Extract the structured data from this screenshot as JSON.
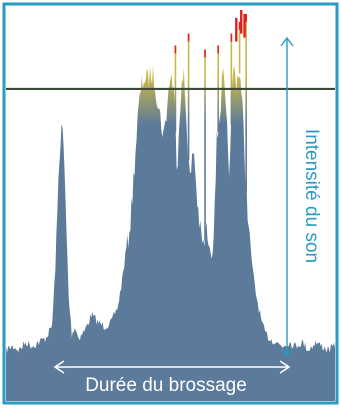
{
  "chart_data": {
    "type": "area",
    "title": "",
    "xlabel": "Durée du brossage",
    "ylabel": "Intensité du son",
    "xlim": [
      0,
      100
    ],
    "ylim": [
      0,
      100
    ],
    "threshold": 79,
    "colors": {
      "frame": "#2a9bc2",
      "fill": "#5c7a9a",
      "threshold_fill": "#c8b84a",
      "peak": "#e02020",
      "threshold_line": "#3d4a3a",
      "arrow": "#2a9bc2",
      "label_text_v": "#2a9bc2",
      "label_text_h": "#ffffff",
      "background": "#ffffff"
    },
    "envelope": {
      "x": [
        0,
        2,
        4,
        6,
        8,
        10,
        12,
        14,
        15,
        16,
        16.8,
        17.5,
        18.3,
        19,
        20,
        21,
        22,
        24,
        26,
        28,
        30,
        32,
        34,
        35,
        36,
        38,
        40,
        41,
        42,
        43,
        44,
        45,
        46,
        47,
        48,
        49,
        50,
        51,
        52,
        53,
        54,
        55,
        56,
        57,
        58,
        59,
        60,
        61,
        62,
        63,
        64,
        65,
        66,
        67,
        68,
        69,
        70,
        71,
        72,
        73,
        74,
        75,
        76,
        77,
        78,
        79,
        80,
        82,
        84,
        86,
        88,
        90,
        92,
        94,
        96,
        98,
        100
      ],
      "y": [
        14,
        15,
        14,
        16,
        15,
        16,
        17,
        20,
        35,
        60,
        74,
        67,
        48,
        28,
        18,
        20,
        17,
        19,
        23,
        21,
        20,
        21,
        25,
        30,
        36,
        50,
        74,
        82,
        85,
        84,
        86,
        85,
        80,
        74,
        70,
        78,
        86,
        82,
        62,
        80,
        86,
        72,
        58,
        68,
        55,
        46,
        42,
        47,
        38,
        44,
        68,
        76,
        86,
        73,
        60,
        88,
        84,
        87,
        75,
        57,
        44,
        34,
        28,
        24,
        20,
        18,
        17,
        16,
        15,
        16,
        15,
        16,
        14,
        16,
        15,
        14,
        15
      ]
    },
    "spikes": [
      {
        "x": 51.5,
        "y": 90
      },
      {
        "x": 55.5,
        "y": 93
      },
      {
        "x": 60.5,
        "y": 89
      },
      {
        "x": 64.5,
        "y": 90
      },
      {
        "x": 68.5,
        "y": 93
      },
      {
        "x": 71.0,
        "y": 96
      },
      {
        "x": 73.0,
        "y": 98
      }
    ],
    "red_peaks": [
      {
        "x": 70.0,
        "y": 97
      },
      {
        "x": 71.5,
        "y": 99
      },
      {
        "x": 72.5,
        "y": 98
      }
    ]
  }
}
